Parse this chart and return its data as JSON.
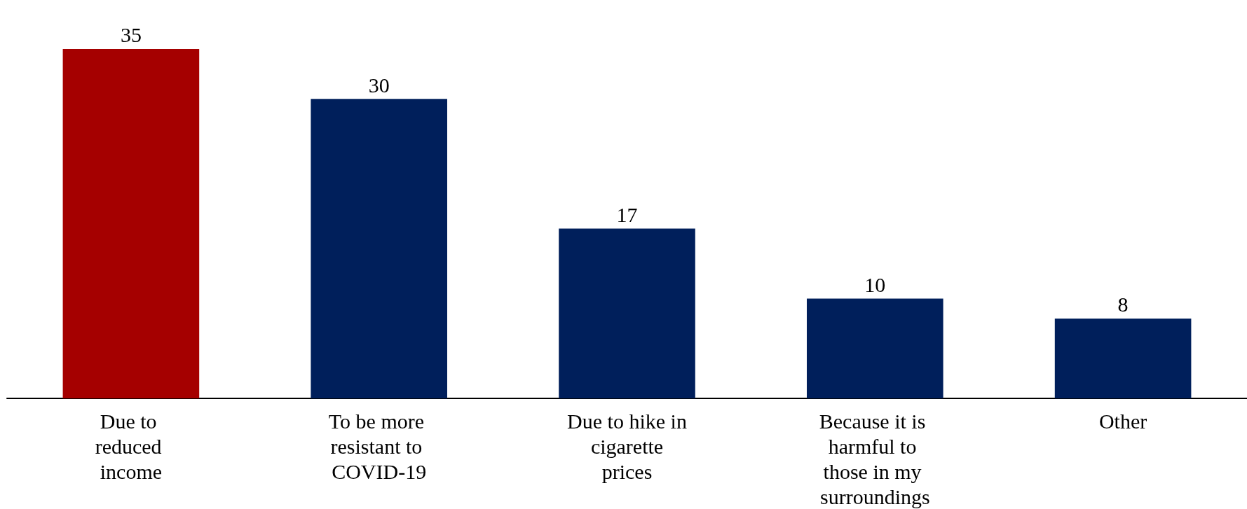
{
  "chart_data": {
    "type": "bar",
    "categories": [
      "Due to reduced income",
      "To be more resistant to COVID-19",
      "Due to hike in cigarette prices",
      "Because it is harmful to those in my surroundings",
      "Other"
    ],
    "values": [
      35,
      30,
      17,
      10,
      8
    ],
    "colors": [
      "#a50000",
      "#001f5b",
      "#001f5b",
      "#001f5b",
      "#001f5b"
    ],
    "data_labels": true
  }
}
